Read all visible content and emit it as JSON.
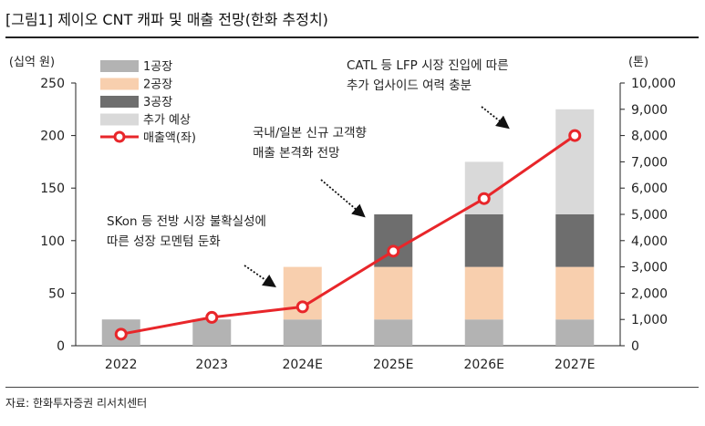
{
  "figure_title": "[그림1]    제이오 CNT 캐파 및 매출 전망(한화 추정치)",
  "source": "자료: 한화투자증권 리서치센터",
  "colors": {
    "cap1": "#b3b3b3",
    "cap2": "#f8cfae",
    "cap3": "#6e6e6e",
    "planned": "#d9d9d9",
    "revenue": "#e8262a"
  },
  "chart_data": {
    "type": "bar",
    "stacked": true,
    "categories": [
      "2022",
      "2023",
      "2024E",
      "2025E",
      "2026E",
      "2027E"
    ],
    "y_left": {
      "unit_label": "(십억 원)",
      "min": 0,
      "max": 250,
      "ticks": [
        "0",
        "50",
        "100",
        "150",
        "200",
        "250"
      ]
    },
    "y_right": {
      "unit_label": "(톤)",
      "min": 0,
      "max": 10000,
      "ticks": [
        "0",
        "1,000",
        "2,000",
        "3,000",
        "4,000",
        "5,000",
        "6,000",
        "7,000",
        "8,000",
        "9,000",
        "10,000"
      ]
    },
    "series": [
      {
        "name": "1공장",
        "axis": "right",
        "type": "bar",
        "color": "#b3b3b3",
        "values": [
          1000,
          1000,
          1000,
          1000,
          1000,
          1000
        ]
      },
      {
        "name": "2공장",
        "axis": "right",
        "type": "bar",
        "color": "#f8cfae",
        "values": [
          0,
          0,
          2000,
          2000,
          2000,
          2000
        ]
      },
      {
        "name": "3공장",
        "axis": "right",
        "type": "bar",
        "color": "#6e6e6e",
        "values": [
          0,
          0,
          0,
          2000,
          2000,
          2000
        ]
      },
      {
        "name": "추가 예상",
        "axis": "right",
        "type": "bar",
        "color": "#d9d9d9",
        "values": [
          0,
          0,
          0,
          0,
          2000,
          4000
        ]
      },
      {
        "name": "매출액(좌)",
        "axis": "left",
        "type": "line",
        "color": "#e8262a",
        "values": [
          11,
          27,
          37,
          90,
          140,
          200
        ]
      }
    ],
    "annotations": [
      {
        "lines": [
          "SKon 등 전방 시장 불확실성에",
          "따른 성장 모멘텀 둔화"
        ],
        "target_category": "2024E"
      },
      {
        "lines": [
          "국내/일본 신규 고객향",
          "매출 본격화 전망"
        ],
        "target_category": "2025E"
      },
      {
        "lines": [
          "CATL 등 LFP 시장 진입에 따른",
          "추가 업사이드 여력 충분"
        ],
        "target_category": "2027E"
      }
    ],
    "legend_position": "top-left"
  }
}
